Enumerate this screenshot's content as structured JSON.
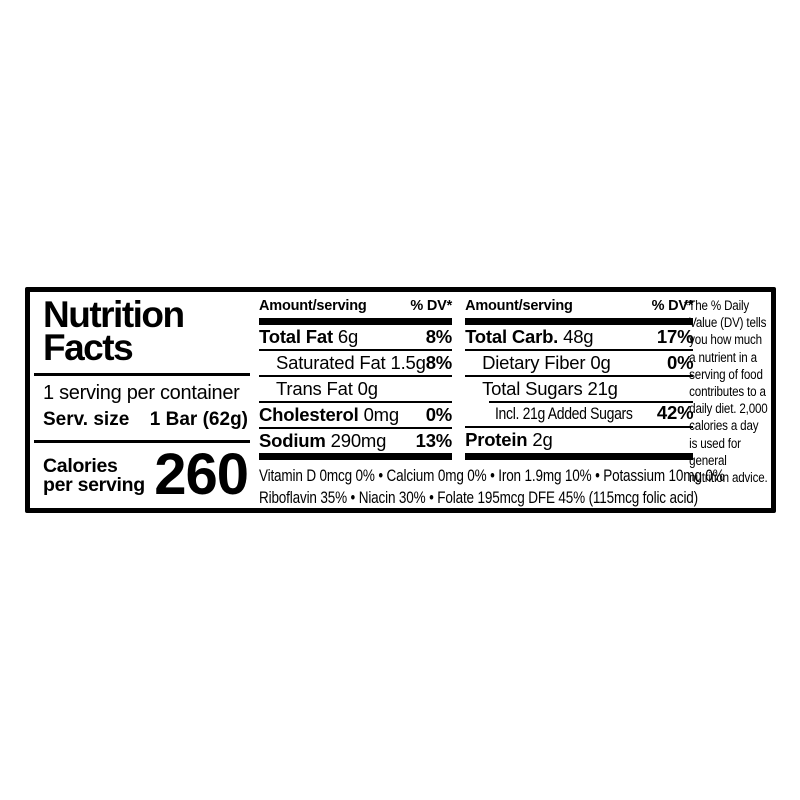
{
  "label": {
    "title_line1": "Nutrition",
    "title_line2": "Facts",
    "servings_per_container": "1 serving per container",
    "serving_size_label": "Serv. size",
    "serving_size_value": "1 Bar (62g)",
    "calories_label_line1": "Calories",
    "calories_label_line2": "per serving",
    "calories_value": "260",
    "columns": [
      {
        "header_amount": "Amount/serving",
        "header_dv": "% DV*",
        "rows": [
          {
            "name": "Total Fat",
            "amount": "6g",
            "dv": "8%"
          },
          {
            "name": "Saturated Fat",
            "amount": "1.5g",
            "dv": "8%"
          },
          {
            "name": "Trans Fat",
            "amount": "0g",
            "dv": ""
          },
          {
            "name": "Cholesterol",
            "amount": "0mg",
            "dv": "0%"
          },
          {
            "name": "Sodium",
            "amount": "290mg",
            "dv": "13%"
          }
        ]
      },
      {
        "header_amount": "Amount/serving",
        "header_dv": "% DV*",
        "rows": [
          {
            "name": "Total Carb.",
            "amount": "48g",
            "dv": "17%"
          },
          {
            "name": "Dietary Fiber",
            "amount": "0g",
            "dv": "0%"
          },
          {
            "name": "Total Sugars",
            "amount": "21g",
            "dv": ""
          },
          {
            "name": "Incl. 21g Added Sugars",
            "amount": "",
            "dv": "42%"
          },
          {
            "name": "Protein",
            "amount": "2g",
            "dv": ""
          }
        ]
      }
    ],
    "micronutrients_line1": "Vitamin D 0mcg 0% • Calcium 0mg 0% • Iron 1.9mg 10% • Potassium 10mg 0%",
    "micronutrients_line2": "Riboflavin 35% • Niacin 30% • Folate 195mcg DFE 45% (115mcg folic acid)",
    "footnote": "*The % Daily Value (DV) tells you how much a nutrient in a serving of food contributes to a daily diet. 2,000 calories a day is used for general nutrition advice.",
    "text_color": "#000000",
    "background_color": "#ffffff"
  }
}
